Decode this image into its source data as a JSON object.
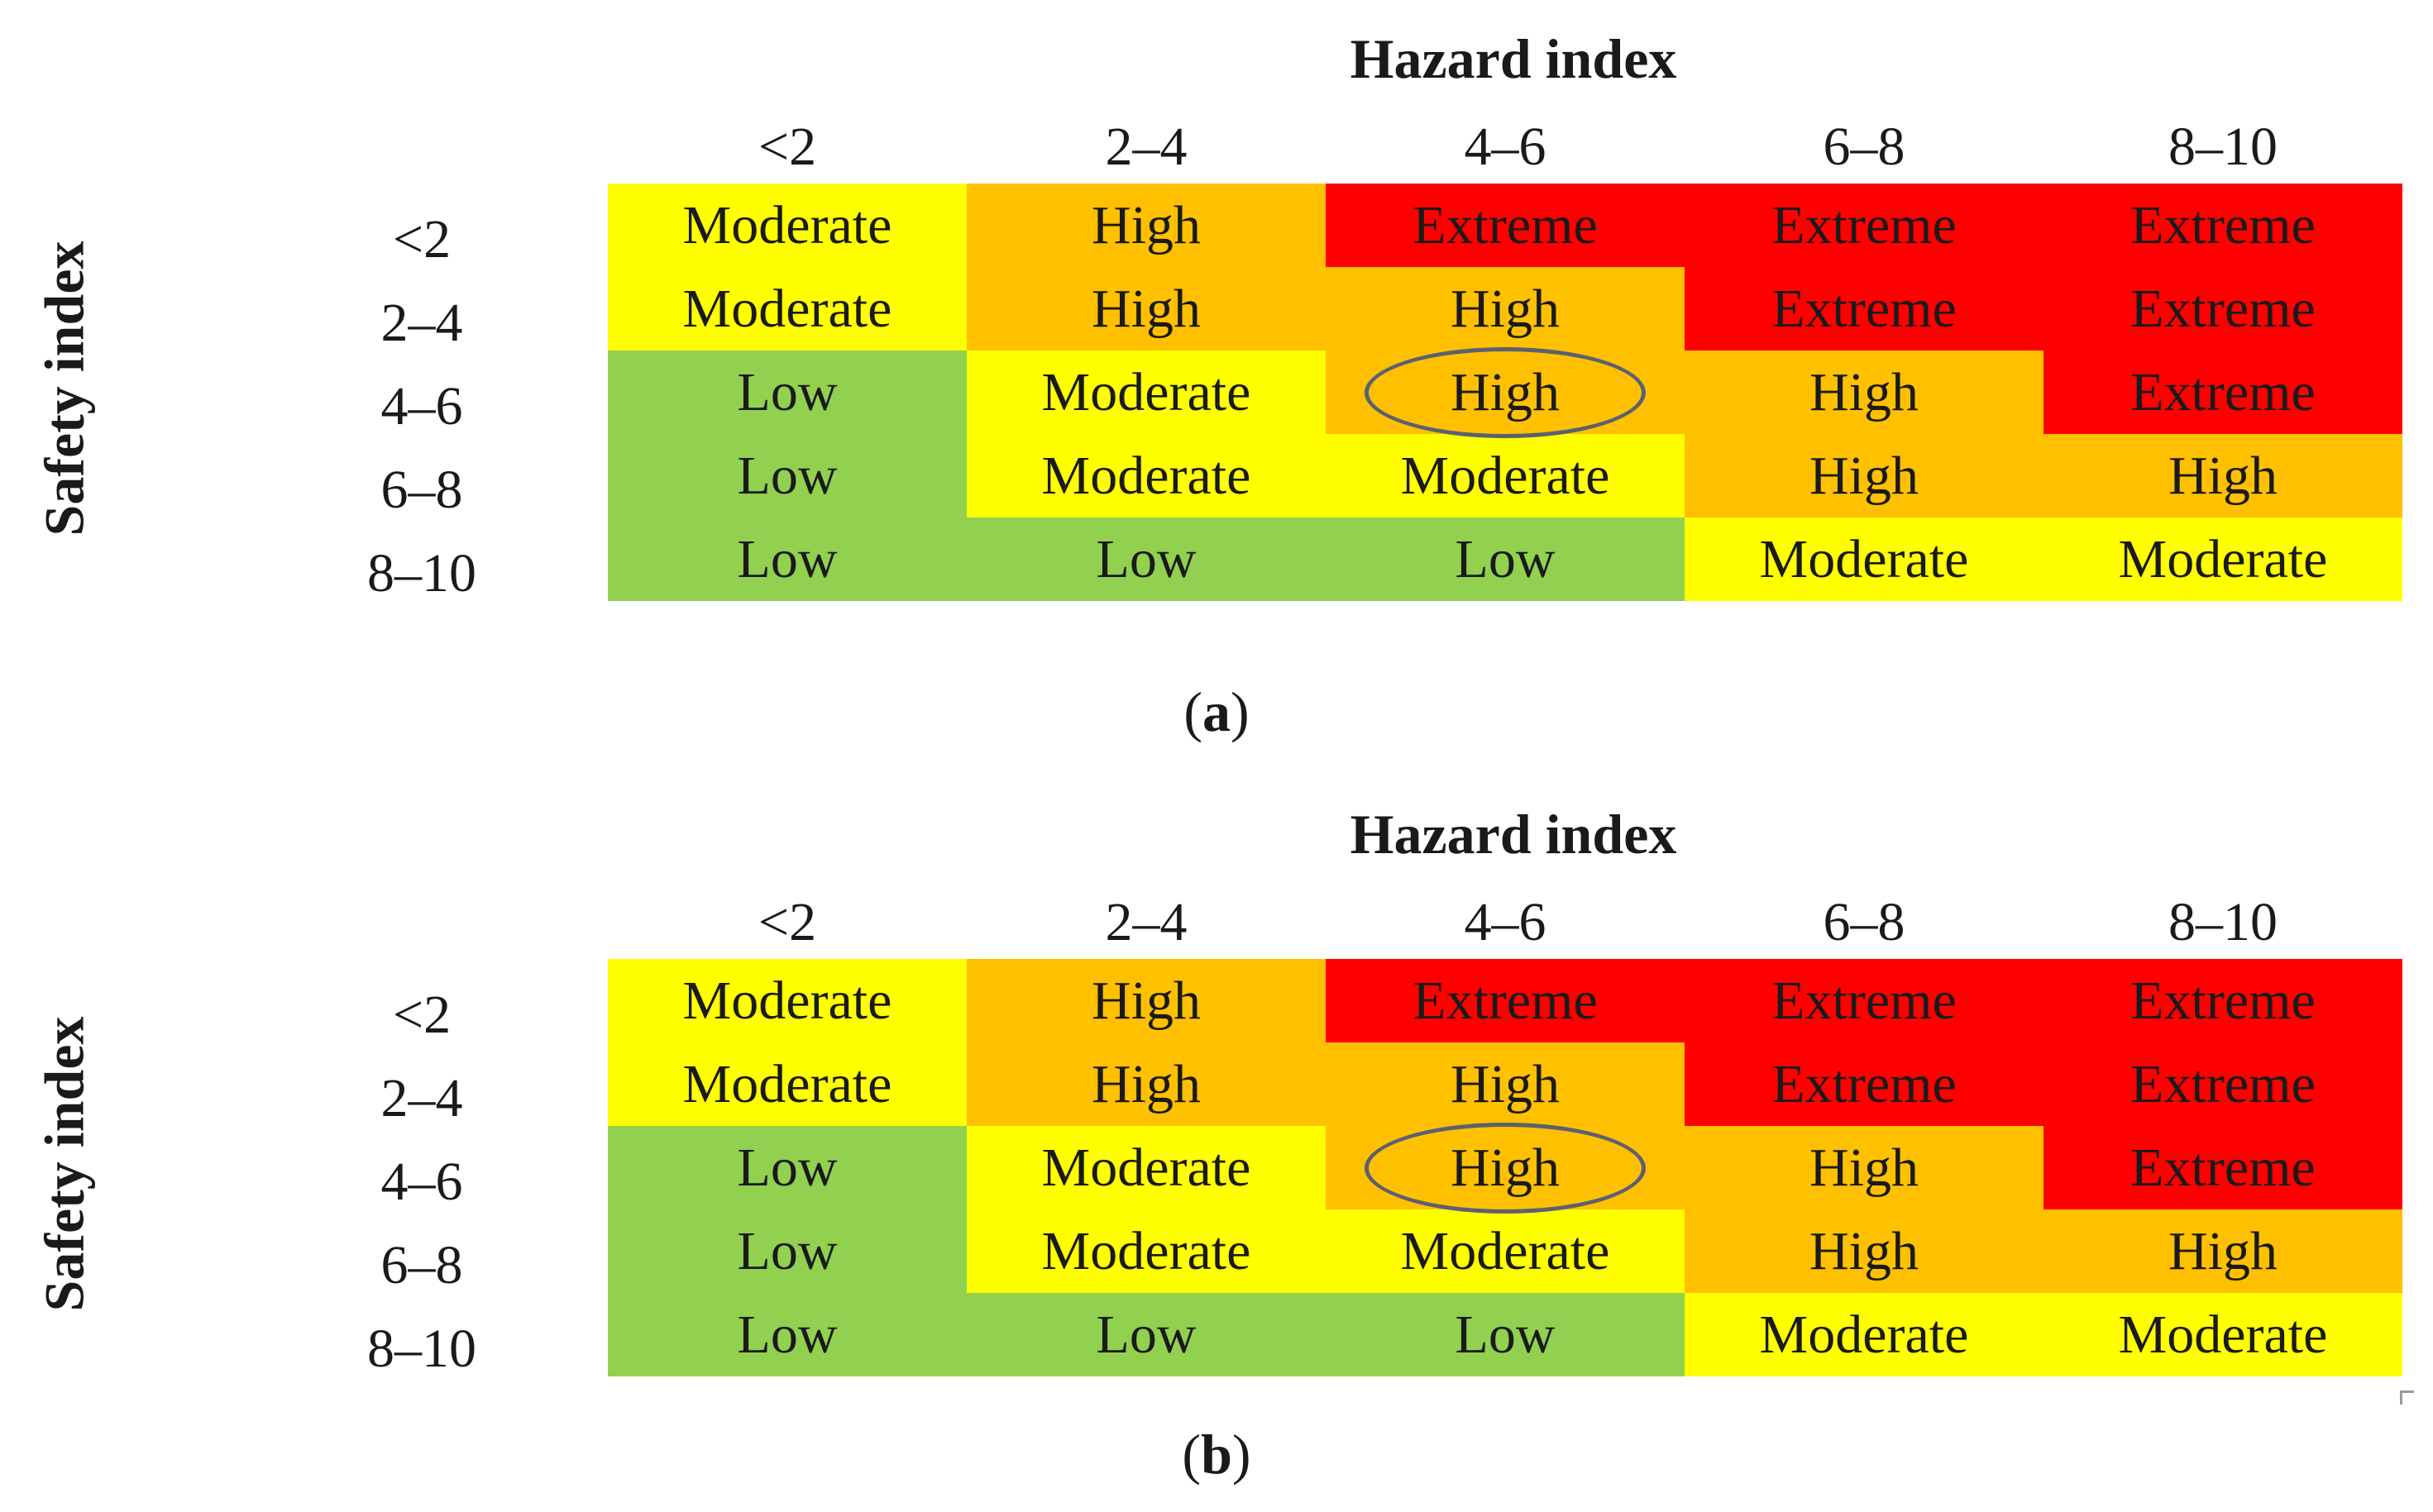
{
  "colors": {
    "Low": "#92d050",
    "Moderate": "#ffff00",
    "High": "#ffc000",
    "Extreme": "#ff0000"
  },
  "chart_data": [
    {
      "type": "heatmap",
      "caption_letter": "a",
      "xlabel": "Hazard index",
      "ylabel": "Safety index",
      "x_categories": [
        "<2",
        "2–4",
        "4–6",
        "6–8",
        "8–10"
      ],
      "y_categories": [
        "<2",
        "2–4",
        "4–6",
        "6–8",
        "8–10"
      ],
      "cells": [
        [
          "Moderate",
          "High",
          "Extreme",
          "Extreme",
          "Extreme"
        ],
        [
          "Moderate",
          "High",
          "High",
          "Extreme",
          "Extreme"
        ],
        [
          "Low",
          "Moderate",
          "High",
          "High",
          "Extreme"
        ],
        [
          "Low",
          "Moderate",
          "Moderate",
          "High",
          "High"
        ],
        [
          "Low",
          "Low",
          "Low",
          "Moderate",
          "Moderate"
        ]
      ],
      "highlighted_cell": {
        "safety_index": "4–6",
        "hazard_index": "4–6"
      }
    },
    {
      "type": "heatmap",
      "caption_letter": "b",
      "xlabel": "Hazard index",
      "ylabel": "Safety index",
      "x_categories": [
        "<2",
        "2–4",
        "4–6",
        "6–8",
        "8–10"
      ],
      "y_categories": [
        "<2",
        "2–4",
        "4–6",
        "6–8",
        "8–10"
      ],
      "cells": [
        [
          "Moderate",
          "High",
          "Extreme",
          "Extreme",
          "Extreme"
        ],
        [
          "Moderate",
          "High",
          "High",
          "Extreme",
          "Extreme"
        ],
        [
          "Low",
          "Moderate",
          "High",
          "High",
          "Extreme"
        ],
        [
          "Low",
          "Moderate",
          "Moderate",
          "High",
          "High"
        ],
        [
          "Low",
          "Low",
          "Low",
          "Moderate",
          "Moderate"
        ]
      ],
      "highlighted_cell": {
        "safety_index": "4–6",
        "hazard_index": "4–6"
      }
    }
  ]
}
